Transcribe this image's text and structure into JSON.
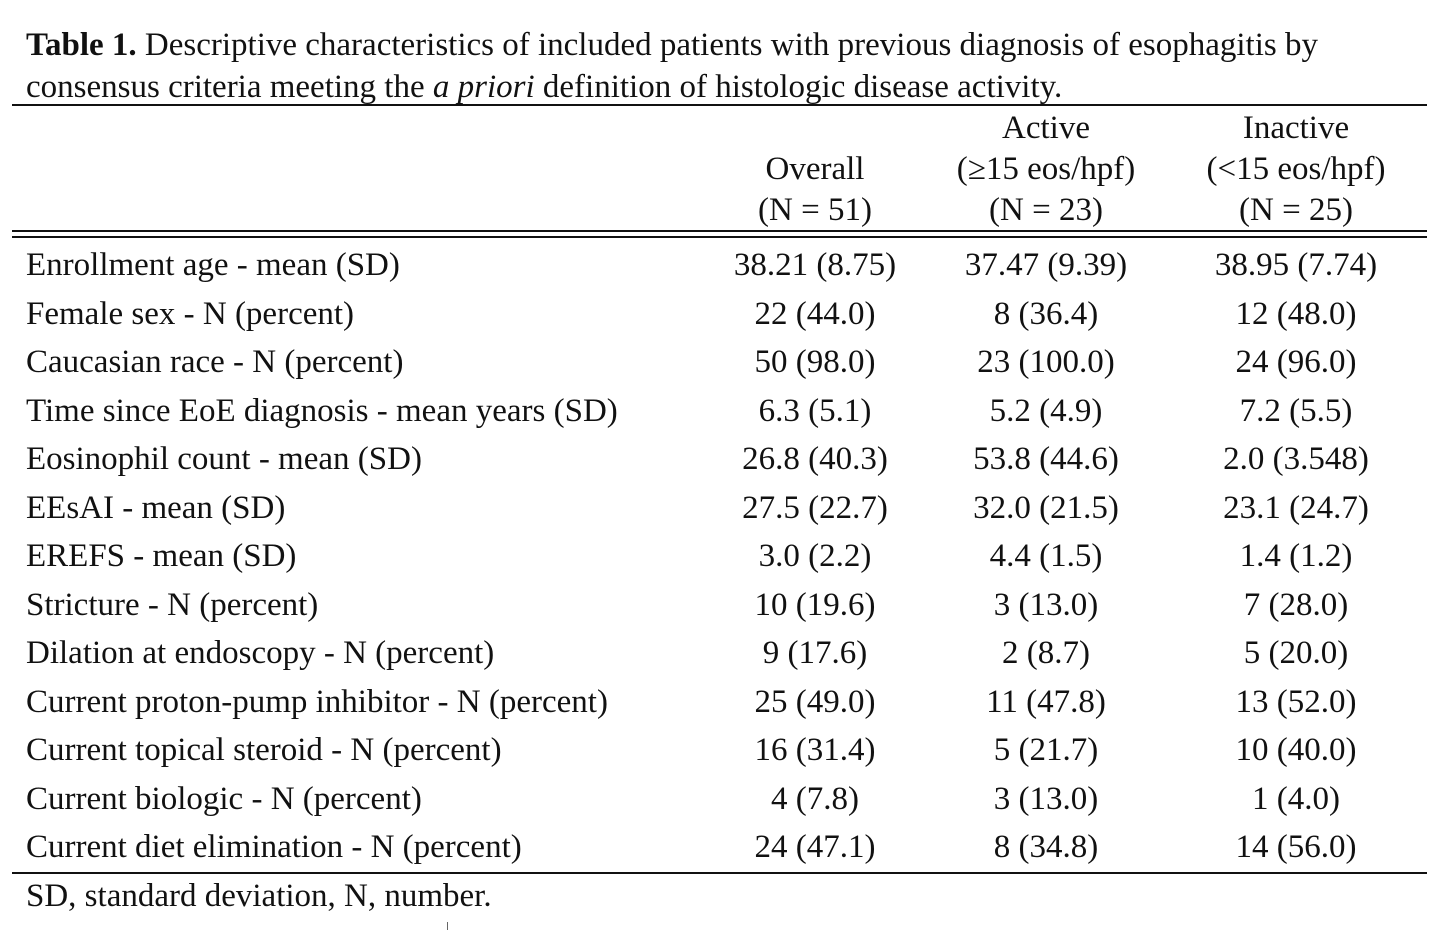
{
  "caption": {
    "label": "Table 1.",
    "text_part1": " Descriptive characteristics of included patients with previous diagnosis of esophagitis by consensus criteria meeting the ",
    "text_italic": "a priori",
    "text_part2": " definition of histologic disease activity."
  },
  "columns": [
    {
      "line1": "",
      "line2": "Overall",
      "line3": "(N = 51)"
    },
    {
      "line1": "Active",
      "line2": "(≥15 eos/hpf)",
      "line3": "(N = 23)"
    },
    {
      "line1": "Inactive",
      "line2": "(<15 eos/hpf)",
      "line3": "(N = 25)"
    }
  ],
  "rows": [
    {
      "label": "Enrollment age - mean (SD)",
      "overall": "38.21 (8.75)",
      "active": "37.47 (9.39)",
      "inactive": "38.95 (7.74)"
    },
    {
      "label": "Female sex - N (percent)",
      "overall": "22 (44.0)",
      "active": "8 (36.4)",
      "inactive": "12 (48.0)"
    },
    {
      "label": "Caucasian race - N (percent)",
      "overall": "50 (98.0)",
      "active": "23 (100.0)",
      "inactive": "24 (96.0)"
    },
    {
      "label": "Time since EoE diagnosis - mean years (SD)",
      "overall": "6.3 (5.1)",
      "active": "5.2 (4.9)",
      "inactive": "7.2 (5.5)"
    },
    {
      "label": "Eosinophil count - mean (SD)",
      "overall": "26.8 (40.3)",
      "active": "53.8 (44.6)",
      "inactive": "2.0 (3.548)"
    },
    {
      "label": "EEsAI - mean (SD)",
      "overall": "27.5 (22.7)",
      "active": "32.0 (21.5)",
      "inactive": "23.1 (24.7)"
    },
    {
      "label": "EREFS - mean (SD)",
      "overall": "3.0 (2.2)",
      "active": "4.4 (1.5)",
      "inactive": "1.4 (1.2)"
    },
    {
      "label": "Stricture - N (percent)",
      "overall": "10 (19.6)",
      "active": "3 (13.0)",
      "inactive": "7 (28.0)"
    },
    {
      "label": "Dilation at endoscopy - N (percent)",
      "overall": "9 (17.6)",
      "active": "2 (8.7)",
      "inactive": "5 (20.0)"
    },
    {
      "label": "Current proton-pump inhibitor - N (percent)",
      "overall": "25 (49.0)",
      "active": "11 (47.8)",
      "inactive": "13 (52.0)"
    },
    {
      "label": "Current topical steroid - N (percent)",
      "overall": "16 (31.4)",
      "active": "5 (21.7)",
      "inactive": "10 (40.0)"
    },
    {
      "label": "Current biologic - N (percent)",
      "overall": "4 (7.8)",
      "active": "3 (13.0)",
      "inactive": "1 (4.0)"
    },
    {
      "label": "Current diet elimination - N (percent)",
      "overall": "24 (47.1)",
      "active": "8 (34.8)",
      "inactive": "14 (56.0)"
    }
  ],
  "footnote": "SD, standard deviation, N, number."
}
